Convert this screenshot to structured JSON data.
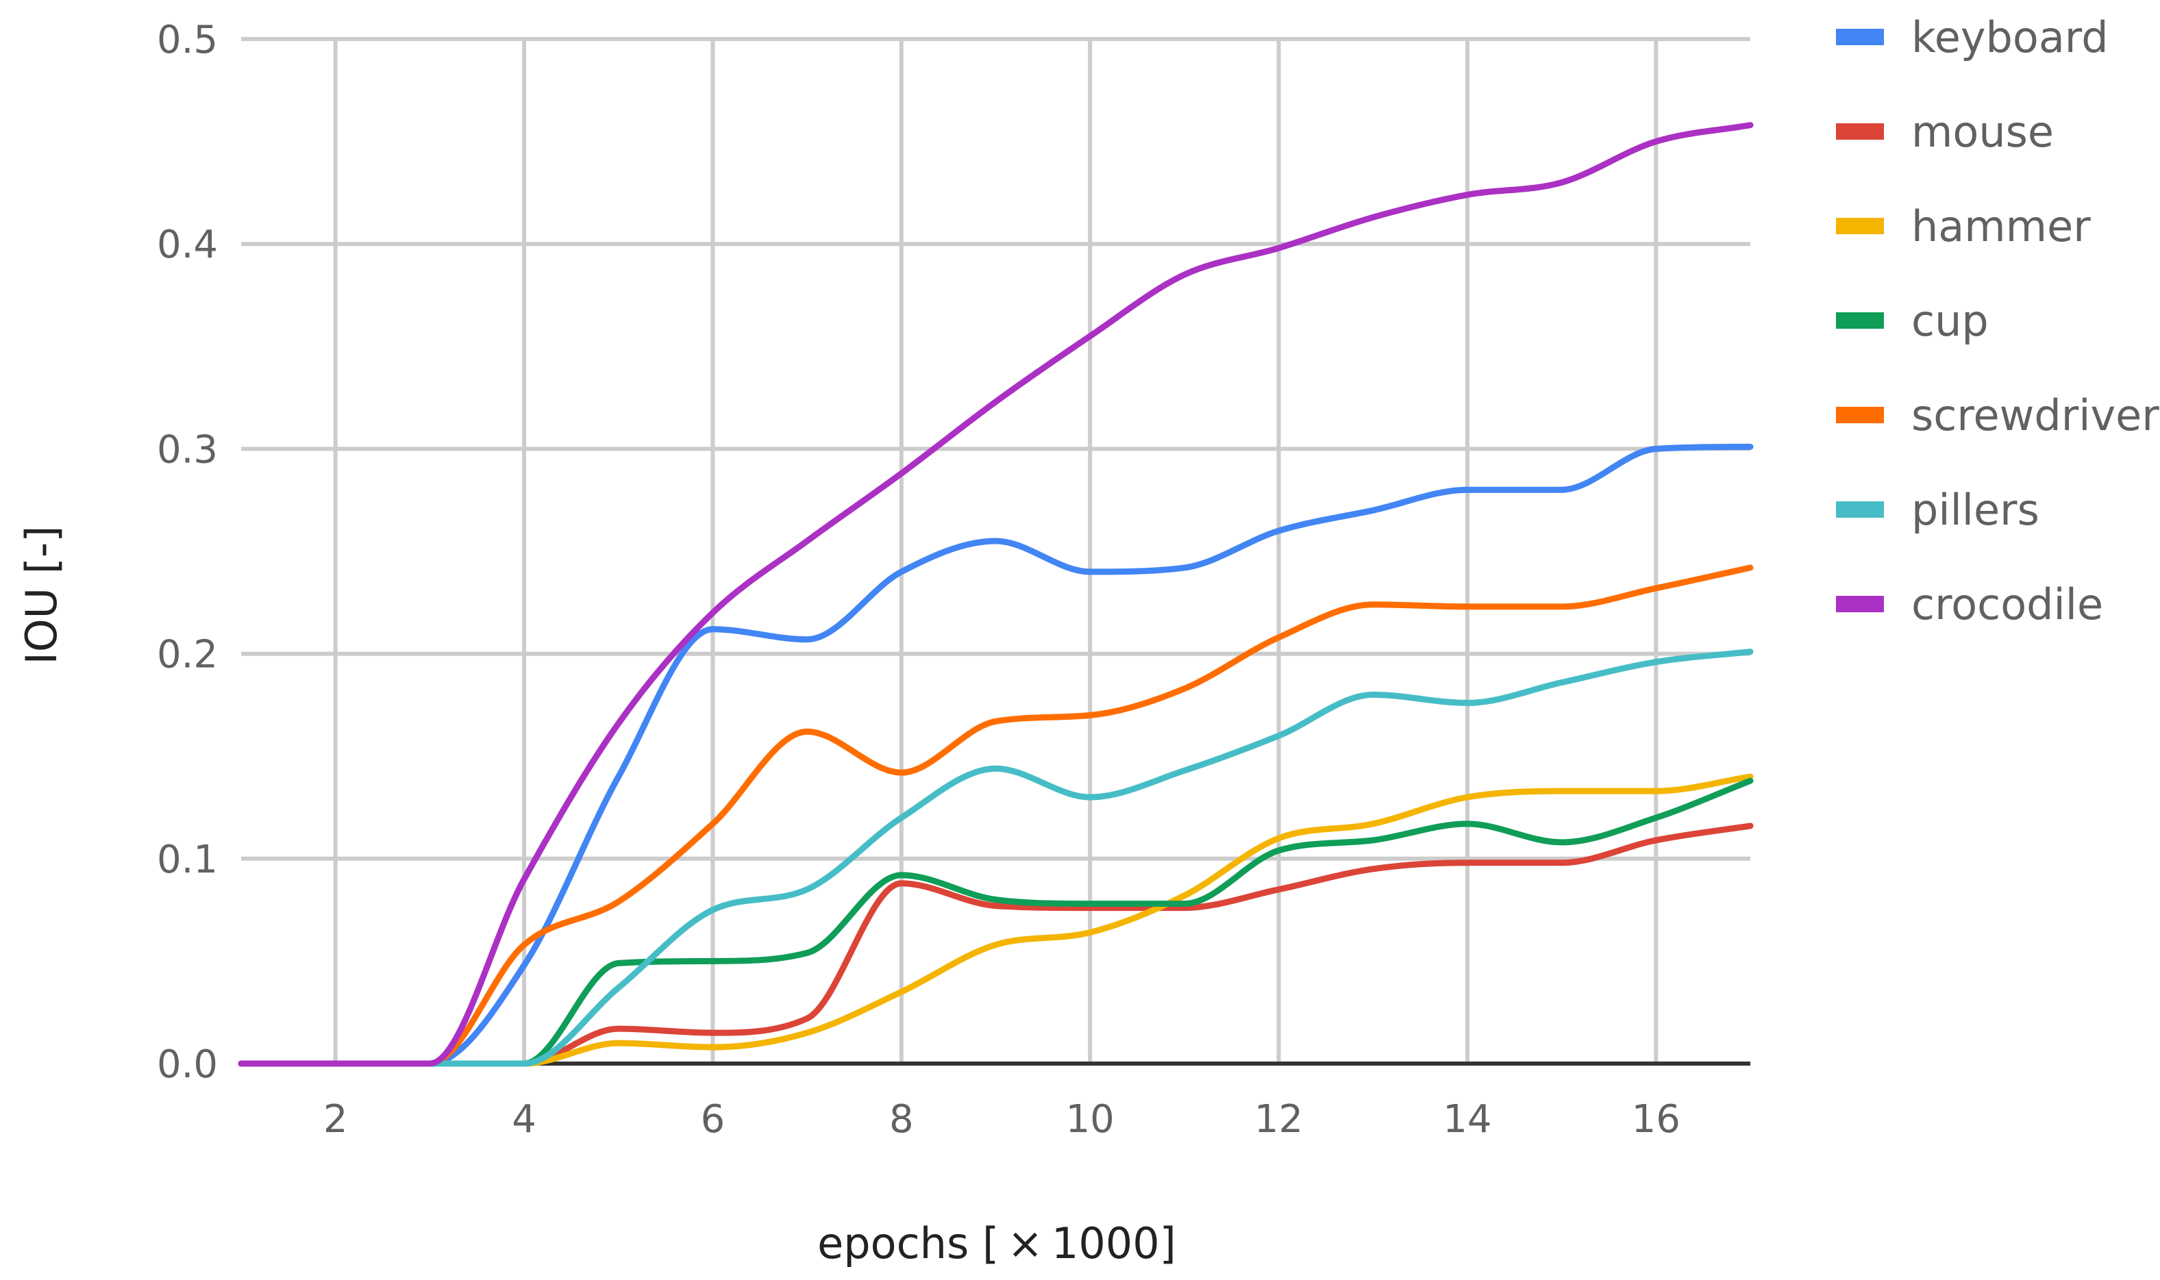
{
  "chart_data": {
    "type": "line",
    "title": "",
    "xlabel": "epochs [ × 1000]",
    "ylabel": "IOU  [-]",
    "xlim": [
      1,
      17
    ],
    "ylim": [
      0,
      0.5
    ],
    "x_ticks": [
      "2",
      "4",
      "6",
      "8",
      "10",
      "12",
      "14",
      "16"
    ],
    "y_ticks": [
      "0.0",
      "0.1",
      "0.2",
      "0.3",
      "0.4",
      "0.5"
    ],
    "grid": true,
    "legend_position": "right",
    "x": [
      1,
      2,
      3,
      4,
      5,
      6,
      7,
      8,
      9,
      10,
      11,
      12,
      13,
      14,
      15,
      16,
      17
    ],
    "series": [
      {
        "name": "keyboard",
        "color": "#4285f4",
        "values": [
          0,
          0,
          0,
          0.048,
          0.14,
          0.212,
          0.207,
          0.24,
          0.255,
          0.24,
          0.242,
          0.26,
          0.27,
          0.28,
          0.28,
          0.3,
          0.301
        ]
      },
      {
        "name": "mouse",
        "color": "#db4437",
        "values": [
          0,
          0,
          0,
          0,
          0.017,
          0.015,
          0.022,
          0.088,
          0.077,
          0.076,
          0.076,
          0.085,
          0.095,
          0.098,
          0.098,
          0.109,
          0.116
        ]
      },
      {
        "name": "hammer",
        "color": "#f4b400",
        "values": [
          0,
          0,
          0,
          0,
          0.01,
          0.008,
          0.015,
          0.035,
          0.058,
          0.064,
          0.082,
          0.11,
          0.117,
          0.13,
          0.133,
          0.133,
          0.14
        ]
      },
      {
        "name": "cup",
        "color": "#0f9d58",
        "values": [
          0,
          0,
          0,
          0,
          0.049,
          0.05,
          0.054,
          0.092,
          0.08,
          0.078,
          0.078,
          0.104,
          0.109,
          0.117,
          0.108,
          0.12,
          0.138
        ]
      },
      {
        "name": "screwdriver",
        "color": "#ff6d01",
        "values": [
          0,
          0,
          0,
          0.058,
          0.079,
          0.117,
          0.162,
          0.142,
          0.167,
          0.17,
          0.183,
          0.208,
          0.224,
          0.223,
          0.223,
          0.232,
          0.242
        ]
      },
      {
        "name": "pillers",
        "color": "#46bdc6",
        "values": [
          0,
          0,
          0,
          0,
          0.037,
          0.075,
          0.085,
          0.12,
          0.144,
          0.13,
          0.143,
          0.16,
          0.18,
          0.176,
          0.186,
          0.196,
          0.201
        ]
      },
      {
        "name": "crocodile",
        "color": "#ab30c4",
        "values": [
          0,
          0,
          0,
          0.09,
          0.166,
          0.22,
          0.255,
          0.288,
          0.323,
          0.355,
          0.385,
          0.398,
          0.413,
          0.424,
          0.43,
          0.45,
          0.458
        ]
      }
    ]
  }
}
